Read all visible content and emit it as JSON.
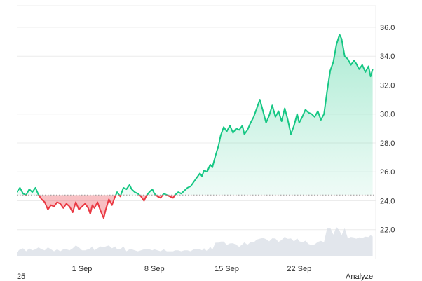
{
  "chart_data": {
    "type": "area",
    "y_ticks": [
      "22.0",
      "24.0",
      "26.0",
      "28.0",
      "30.0",
      "32.0",
      "34.0",
      "36.0"
    ],
    "ylim": [
      20.0,
      37.5
    ],
    "x_ticks": [
      {
        "label": "1 Sep",
        "day": 1
      },
      {
        "label": "8 Sep",
        "day": 8
      },
      {
        "label": "15 Sep",
        "day": 15
      },
      {
        "label": "22 Sep",
        "day": 22
      }
    ],
    "xlim_days": [
      -5.3,
      29.4
    ],
    "baseline": 24.4,
    "colors": {
      "up": "#16c784",
      "down": "#ea3943",
      "up_fill": "#16c784",
      "down_fill": "#ea3943",
      "volume": "#d5dce4",
      "grid": "#ececec",
      "baseline": "#999999"
    },
    "series": [
      {
        "values_by_day": [
          [
            -5.3,
            24.6
          ],
          [
            -5.0,
            24.9
          ],
          [
            -4.7,
            24.5
          ],
          [
            -4.4,
            24.4
          ],
          [
            -4.1,
            24.8
          ],
          [
            -3.8,
            24.6
          ],
          [
            -3.5,
            24.9
          ],
          [
            -3.2,
            24.4
          ],
          [
            -2.9,
            24.1
          ],
          [
            -2.6,
            23.9
          ],
          [
            -2.3,
            23.4
          ],
          [
            -2.0,
            23.7
          ],
          [
            -1.7,
            23.6
          ],
          [
            -1.4,
            23.9
          ],
          [
            -1.1,
            23.8
          ],
          [
            -0.8,
            23.5
          ],
          [
            -0.5,
            23.8
          ],
          [
            -0.2,
            23.6
          ],
          [
            0.1,
            23.2
          ],
          [
            0.4,
            23.9
          ],
          [
            0.7,
            23.4
          ],
          [
            1.0,
            23.6
          ],
          [
            1.3,
            23.8
          ],
          [
            1.6,
            23.5
          ],
          [
            1.8,
            23.1
          ],
          [
            2.0,
            23.7
          ],
          [
            2.2,
            23.5
          ],
          [
            2.5,
            23.9
          ],
          [
            2.8,
            23.3
          ],
          [
            3.1,
            22.8
          ],
          [
            3.3,
            23.4
          ],
          [
            3.6,
            24.1
          ],
          [
            3.9,
            23.7
          ],
          [
            4.2,
            24.3
          ],
          [
            4.4,
            24.6
          ],
          [
            4.7,
            24.3
          ],
          [
            5.0,
            24.9
          ],
          [
            5.3,
            24.8
          ],
          [
            5.6,
            25.1
          ],
          [
            5.8,
            24.8
          ],
          [
            6.1,
            24.6
          ],
          [
            6.4,
            24.5
          ],
          [
            6.7,
            24.3
          ],
          [
            7.0,
            24.0
          ],
          [
            7.2,
            24.3
          ],
          [
            7.5,
            24.6
          ],
          [
            7.8,
            24.8
          ],
          [
            8.0,
            24.5
          ],
          [
            8.3,
            24.3
          ],
          [
            8.6,
            24.2
          ],
          [
            8.9,
            24.5
          ],
          [
            9.2,
            24.4
          ],
          [
            9.5,
            24.3
          ],
          [
            9.8,
            24.2
          ],
          [
            10.0,
            24.4
          ],
          [
            10.3,
            24.6
          ],
          [
            10.6,
            24.5
          ],
          [
            10.9,
            24.7
          ],
          [
            11.2,
            24.9
          ],
          [
            11.5,
            25.0
          ],
          [
            11.8,
            25.3
          ],
          [
            12.1,
            25.6
          ],
          [
            12.4,
            25.9
          ],
          [
            12.6,
            25.7
          ],
          [
            12.8,
            26.1
          ],
          [
            13.1,
            26.0
          ],
          [
            13.4,
            26.5
          ],
          [
            13.6,
            26.3
          ],
          [
            13.9,
            27.1
          ],
          [
            14.2,
            27.8
          ],
          [
            14.4,
            28.5
          ],
          [
            14.7,
            29.1
          ],
          [
            15.0,
            28.8
          ],
          [
            15.3,
            29.2
          ],
          [
            15.6,
            28.7
          ],
          [
            15.9,
            29.0
          ],
          [
            16.2,
            28.9
          ],
          [
            16.5,
            29.2
          ],
          [
            16.7,
            28.6
          ],
          [
            17.0,
            28.9
          ],
          [
            17.3,
            29.4
          ],
          [
            17.6,
            29.8
          ],
          [
            17.9,
            30.4
          ],
          [
            18.2,
            31.0
          ],
          [
            18.5,
            30.2
          ],
          [
            18.8,
            29.4
          ],
          [
            19.1,
            29.9
          ],
          [
            19.4,
            30.6
          ],
          [
            19.7,
            29.8
          ],
          [
            20.0,
            30.2
          ],
          [
            20.3,
            29.5
          ],
          [
            20.6,
            30.4
          ],
          [
            20.9,
            29.6
          ],
          [
            21.2,
            28.6
          ],
          [
            21.5,
            29.2
          ],
          [
            21.8,
            30.0
          ],
          [
            22.0,
            29.4
          ],
          [
            22.3,
            29.8
          ],
          [
            22.6,
            30.3
          ],
          [
            22.9,
            30.1
          ],
          [
            23.2,
            30.0
          ],
          [
            23.5,
            29.8
          ],
          [
            23.8,
            30.2
          ],
          [
            24.1,
            29.6
          ],
          [
            24.4,
            30.0
          ],
          [
            24.7,
            31.6
          ],
          [
            25.0,
            33.0
          ],
          [
            25.3,
            33.6
          ],
          [
            25.6,
            34.8
          ],
          [
            25.9,
            35.5
          ],
          [
            26.1,
            35.2
          ],
          [
            26.4,
            34.0
          ],
          [
            26.7,
            33.8
          ],
          [
            27.0,
            33.4
          ],
          [
            27.3,
            33.7
          ],
          [
            27.5,
            33.5
          ],
          [
            27.8,
            33.1
          ],
          [
            28.1,
            33.4
          ],
          [
            28.4,
            32.9
          ],
          [
            28.7,
            33.3
          ],
          [
            28.9,
            32.6
          ],
          [
            29.1,
            33.1
          ]
        ]
      }
    ]
  },
  "corner_left_label": "25",
  "corner_right_label": "Analyze"
}
